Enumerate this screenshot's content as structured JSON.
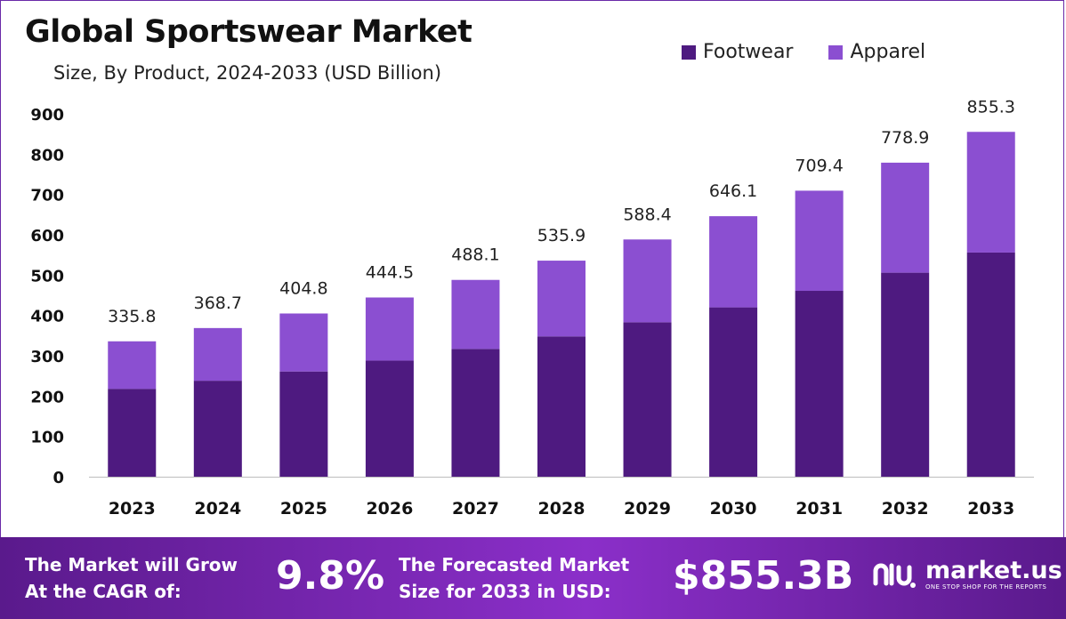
{
  "header": {
    "title": "Global Sportswear Market",
    "subtitle": "Size, By Product, 2024-2033 (USD Billion)"
  },
  "colors": {
    "footwear": "#4e1a80",
    "apparel": "#8b4fd1",
    "axis": "#bdbdbd"
  },
  "chart_data": {
    "type": "bar",
    "stacked": true,
    "categories": [
      "2023",
      "2024",
      "2025",
      "2026",
      "2027",
      "2028",
      "2029",
      "2030",
      "2031",
      "2032",
      "2033"
    ],
    "series": [
      {
        "name": "Footwear",
        "values": [
          218,
          238,
          261,
          288,
          317,
          348,
          383,
          420,
          461,
          506,
          556
        ]
      },
      {
        "name": "Apparel",
        "values": [
          117.8,
          130.7,
          143.8,
          156.5,
          171.1,
          187.9,
          205.4,
          226.1,
          248.4,
          272.9,
          299.3
        ]
      }
    ],
    "totals": [
      335.8,
      368.7,
      404.8,
      444.5,
      488.1,
      535.9,
      588.4,
      646.1,
      709.4,
      778.9,
      855.3
    ],
    "total_labels": [
      "335.8",
      "368.7",
      "404.8",
      "444.5",
      "488.1",
      "535.9",
      "588.4",
      "646.1",
      "709.4",
      "778.9",
      "855.3"
    ],
    "yticks": [
      "0",
      "100",
      "200",
      "300",
      "400",
      "500",
      "600",
      "700",
      "800",
      "900"
    ],
    "ylim": [
      0,
      900
    ],
    "title": "Global Sportswear Market",
    "subtitle": "Size, By Product, 2024-2033 (USD Billion)",
    "xlabel": "",
    "ylabel": "",
    "grid": false,
    "legend_position": "top-right"
  },
  "footer": {
    "cagr_line1": "The Market will Grow",
    "cagr_line2": "At the CAGR of:",
    "cagr_value": "9.8%",
    "forecast_line1": "The Forecasted Market",
    "forecast_line2": "Size for 2033 in USD:",
    "forecast_value": "$855.3B",
    "logo_name": "market.us",
    "logo_tagline": "ONE STOP SHOP FOR THE REPORTS"
  }
}
